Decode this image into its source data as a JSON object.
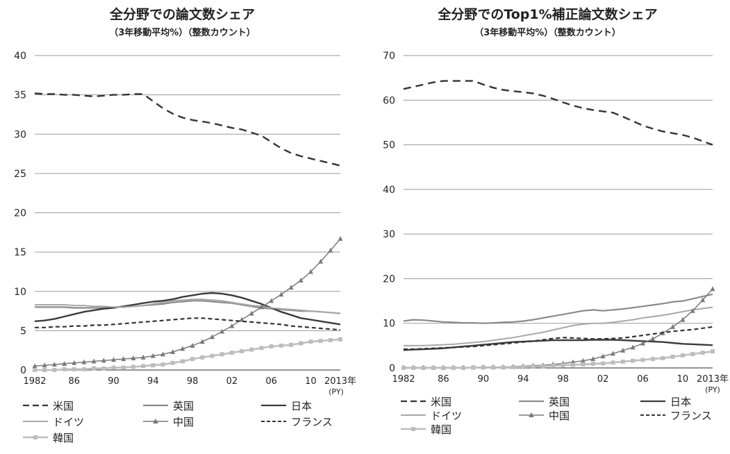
{
  "chart_data": [
    {
      "type": "line",
      "title": "全分野での論文数シェア",
      "subtitle": "（3年移動平均%）（整数カウント）",
      "ylim": [
        0,
        40
      ],
      "yticks": [
        0,
        5,
        10,
        15,
        20,
        25,
        30,
        35,
        40
      ],
      "xlim": [
        1982,
        2013
      ],
      "xtick_values": [
        1982,
        1986,
        1990,
        1994,
        1998,
        2002,
        2006,
        2010,
        2013
      ],
      "xtick_labels": [
        "1982",
        "86",
        "90",
        "94",
        "98",
        "02",
        "06",
        "10",
        "2013年"
      ],
      "x_unit": "(PY)",
      "grid": true,
      "x": [
        1982,
        1983,
        1984,
        1985,
        1986,
        1987,
        1988,
        1989,
        1990,
        1991,
        1992,
        1993,
        1994,
        1995,
        1996,
        1997,
        1998,
        1999,
        2000,
        2001,
        2002,
        2003,
        2004,
        2005,
        2006,
        2007,
        2008,
        2009,
        2010,
        2011,
        2012,
        2013
      ],
      "series": [
        {
          "name": "米国",
          "color": "#333333",
          "values": [
            35.2,
            35.1,
            35.1,
            35.0,
            35.0,
            34.9,
            34.8,
            34.9,
            35.0,
            35.0,
            35.1,
            35.1,
            34.2,
            33.3,
            32.6,
            32.1,
            31.8,
            31.6,
            31.4,
            31.1,
            30.8,
            30.6,
            30.2,
            29.8,
            29.0,
            28.2,
            27.6,
            27.2,
            26.9,
            26.6,
            26.3,
            26.0
          ]
        },
        {
          "name": "英国",
          "color": "#8a8a8a",
          "values": [
            8.0,
            8.0,
            8.0,
            8.0,
            7.9,
            7.9,
            7.9,
            7.9,
            8.0,
            8.0,
            8.1,
            8.2,
            8.3,
            8.4,
            8.6,
            8.7,
            8.8,
            8.8,
            8.7,
            8.6,
            8.5,
            8.3,
            8.1,
            7.9,
            7.8,
            7.7,
            7.6,
            7.5,
            7.5,
            7.4,
            7.3,
            7.2
          ]
        },
        {
          "name": "日本",
          "color": "#3a3a3a",
          "values": [
            6.2,
            6.3,
            6.5,
            6.8,
            7.1,
            7.4,
            7.6,
            7.8,
            7.9,
            8.1,
            8.3,
            8.5,
            8.7,
            8.8,
            9.0,
            9.3,
            9.5,
            9.7,
            9.8,
            9.7,
            9.5,
            9.2,
            8.8,
            8.4,
            7.9,
            7.4,
            7.0,
            6.6,
            6.4,
            6.2,
            6.0,
            5.8
          ]
        },
        {
          "name": "ドイツ",
          "color": "#a8a8a8",
          "values": [
            8.3,
            8.3,
            8.3,
            8.3,
            8.2,
            8.2,
            8.1,
            8.1,
            8.0,
            8.0,
            8.1,
            8.2,
            8.4,
            8.6,
            8.8,
            8.9,
            9.0,
            9.0,
            8.9,
            8.8,
            8.6,
            8.4,
            8.2,
            8.1,
            7.9,
            7.8,
            7.7,
            7.6,
            7.5,
            7.4,
            7.3,
            7.2
          ]
        },
        {
          "name": "中国",
          "color": "#7a7a7a",
          "values": [
            0.5,
            0.6,
            0.7,
            0.8,
            0.9,
            1.0,
            1.1,
            1.2,
            1.3,
            1.4,
            1.5,
            1.6,
            1.8,
            2.0,
            2.3,
            2.7,
            3.1,
            3.6,
            4.2,
            4.9,
            5.6,
            6.4,
            7.2,
            8.0,
            8.8,
            9.6,
            10.5,
            11.4,
            12.5,
            13.8,
            15.2,
            16.7
          ]
        },
        {
          "name": "フランス",
          "color": "#333333",
          "values": [
            5.4,
            5.4,
            5.5,
            5.5,
            5.6,
            5.6,
            5.7,
            5.7,
            5.8,
            5.9,
            6.0,
            6.1,
            6.2,
            6.3,
            6.4,
            6.5,
            6.6,
            6.6,
            6.5,
            6.4,
            6.3,
            6.2,
            6.1,
            6.0,
            5.9,
            5.8,
            5.6,
            5.5,
            5.4,
            5.3,
            5.2,
            5.1
          ]
        },
        {
          "name": "韓国",
          "color": "#bdbdbd",
          "values": [
            0.0,
            0.0,
            0.0,
            0.1,
            0.1,
            0.1,
            0.2,
            0.2,
            0.3,
            0.3,
            0.4,
            0.5,
            0.6,
            0.7,
            0.9,
            1.1,
            1.4,
            1.6,
            1.8,
            2.0,
            2.2,
            2.4,
            2.6,
            2.8,
            3.0,
            3.1,
            3.2,
            3.4,
            3.6,
            3.7,
            3.8,
            3.9
          ]
        }
      ]
    },
    {
      "type": "line",
      "title": "全分野でのTop1%補正論文数シェア",
      "subtitle": "（3年移動平均%）（整数カウント）",
      "ylim": [
        0,
        70
      ],
      "yticks": [
        0,
        10,
        20,
        30,
        40,
        50,
        60,
        70
      ],
      "xlim": [
        1982,
        2013
      ],
      "xtick_values": [
        1982,
        1986,
        1990,
        1994,
        1998,
        2002,
        2006,
        2010,
        2013
      ],
      "xtick_labels": [
        "1982",
        "86",
        "90",
        "94",
        "98",
        "02",
        "06",
        "10",
        "2013年"
      ],
      "x_unit": "(PY)",
      "grid": true,
      "x": [
        1982,
        1983,
        1984,
        1985,
        1986,
        1987,
        1988,
        1989,
        1990,
        1991,
        1992,
        1993,
        1994,
        1995,
        1996,
        1997,
        1998,
        1999,
        2000,
        2001,
        2002,
        2003,
        2004,
        2005,
        2006,
        2007,
        2008,
        2009,
        2010,
        2011,
        2012,
        2013
      ],
      "series": [
        {
          "name": "米国",
          "color": "#333333",
          "values": [
            62.5,
            63.0,
            63.5,
            64.0,
            64.3,
            64.3,
            64.3,
            64.3,
            63.5,
            62.8,
            62.3,
            62.0,
            61.8,
            61.5,
            61.0,
            60.3,
            59.5,
            58.8,
            58.2,
            57.8,
            57.5,
            57.2,
            56.3,
            55.3,
            54.3,
            53.6,
            53.0,
            52.6,
            52.2,
            51.6,
            50.8,
            50.0
          ]
        },
        {
          "name": "英国",
          "color": "#8a8a8a",
          "values": [
            10.5,
            10.8,
            10.7,
            10.5,
            10.3,
            10.2,
            10.1,
            10.1,
            10.0,
            10.1,
            10.2,
            10.3,
            10.5,
            10.8,
            11.2,
            11.6,
            12.0,
            12.4,
            12.8,
            13.0,
            12.8,
            13.0,
            13.2,
            13.5,
            13.8,
            14.1,
            14.4,
            14.8,
            15.0,
            15.5,
            16.0,
            16.5
          ]
        },
        {
          "name": "日本",
          "color": "#3a3a3a",
          "values": [
            4.0,
            4.1,
            4.2,
            4.3,
            4.4,
            4.6,
            4.8,
            5.0,
            5.2,
            5.4,
            5.6,
            5.8,
            5.9,
            6.0,
            6.1,
            6.2,
            6.2,
            6.2,
            6.2,
            6.3,
            6.3,
            6.3,
            6.2,
            6.1,
            6.0,
            5.9,
            5.8,
            5.6,
            5.4,
            5.3,
            5.2,
            5.1
          ]
        },
        {
          "name": "ドイツ",
          "color": "#a8a8a8",
          "values": [
            5.0,
            5.0,
            5.0,
            5.1,
            5.2,
            5.3,
            5.5,
            5.7,
            5.9,
            6.2,
            6.5,
            6.8,
            7.2,
            7.6,
            8.0,
            8.5,
            9.0,
            9.5,
            9.8,
            10.0,
            10.0,
            10.2,
            10.5,
            10.8,
            11.2,
            11.5,
            11.8,
            12.2,
            12.6,
            13.0,
            13.3,
            13.6
          ]
        },
        {
          "name": "中国",
          "color": "#7a7a7a",
          "values": [
            0.1,
            0.1,
            0.1,
            0.1,
            0.1,
            0.1,
            0.1,
            0.1,
            0.2,
            0.2,
            0.2,
            0.3,
            0.4,
            0.5,
            0.6,
            0.8,
            1.0,
            1.3,
            1.6,
            2.0,
            2.6,
            3.2,
            3.9,
            4.6,
            5.5,
            6.5,
            7.8,
            9.2,
            10.8,
            12.8,
            15.2,
            17.7
          ]
        },
        {
          "name": "フランス",
          "color": "#333333",
          "values": [
            4.2,
            4.2,
            4.3,
            4.4,
            4.5,
            4.6,
            4.7,
            4.8,
            5.0,
            5.2,
            5.4,
            5.6,
            5.8,
            6.0,
            6.3,
            6.6,
            6.8,
            6.7,
            6.6,
            6.5,
            6.5,
            6.6,
            6.7,
            7.0,
            7.3,
            7.6,
            7.9,
            8.2,
            8.4,
            8.6,
            8.9,
            9.2
          ]
        },
        {
          "name": "韓国",
          "color": "#bdbdbd",
          "values": [
            0.0,
            0.0,
            0.0,
            0.0,
            0.0,
            0.0,
            0.0,
            0.1,
            0.1,
            0.1,
            0.1,
            0.2,
            0.2,
            0.3,
            0.4,
            0.5,
            0.6,
            0.7,
            0.8,
            0.9,
            1.0,
            1.2,
            1.4,
            1.6,
            1.8,
            2.0,
            2.2,
            2.5,
            2.8,
            3.1,
            3.4,
            3.7
          ]
        }
      ]
    }
  ]
}
